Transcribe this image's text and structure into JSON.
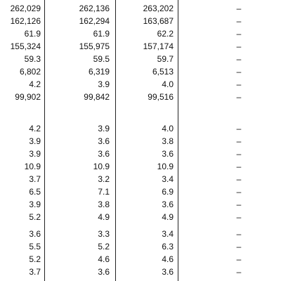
{
  "rows": [
    [
      "262,029",
      "262,136",
      "263,202",
      "–"
    ],
    [
      "162,126",
      "162,294",
      "163,687",
      "–"
    ],
    [
      "61.9",
      "61.9",
      "62.2",
      "–"
    ],
    [
      "155,324",
      "155,975",
      "157,174",
      "–"
    ],
    [
      "59.3",
      "59.5",
      "59.7",
      "–"
    ],
    [
      "6,802",
      "6,319",
      "6,513",
      "–"
    ],
    [
      "4.2",
      "3.9",
      "4.0",
      "–"
    ],
    [
      "99,902",
      "99,842",
      "99,516",
      "–"
    ],
    [
      "4.2",
      "3.9",
      "4.0",
      "–"
    ],
    [
      "3.9",
      "3.6",
      "3.8",
      "–"
    ],
    [
      "3.9",
      "3.6",
      "3.6",
      "–"
    ],
    [
      "10.9",
      "10.9",
      "10.9",
      "–"
    ],
    [
      "3.7",
      "3.2",
      "3.4",
      "–"
    ],
    [
      "6.5",
      "7.1",
      "6.9",
      "–"
    ],
    [
      "3.9",
      "3.8",
      "3.6",
      "–"
    ],
    [
      "5.2",
      "4.9",
      "4.9",
      "–"
    ],
    [
      "3.6",
      "3.3",
      "3.4",
      "–"
    ],
    [
      "5.5",
      "5.2",
      "6.3",
      "–"
    ],
    [
      "5.2",
      "4.6",
      "4.6",
      "–"
    ],
    [
      "3.7",
      "3.6",
      "3.6",
      "–"
    ]
  ]
}
